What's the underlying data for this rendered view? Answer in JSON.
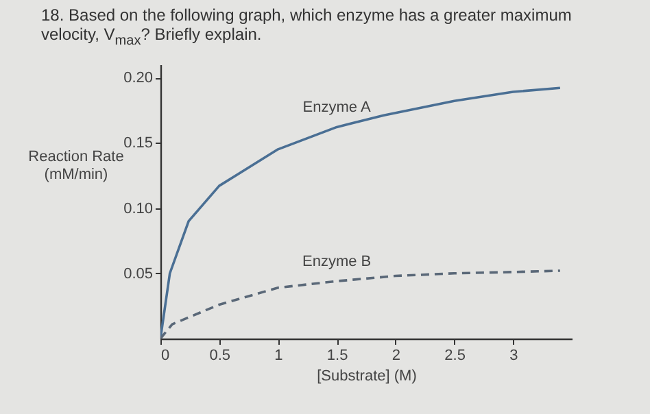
{
  "chart_data": {
    "type": "line",
    "title": "18. Based on the following graph, which enzyme has a greater maximum velocity, V$_{max}$? Briefly explain.",
    "xlabel": "[Substrate] (M)",
    "ylabel": "Reaction Rate (mM/min)",
    "series": [
      {
        "name": "Enzyme A",
        "color": "#4a6f94",
        "line_style": "solid",
        "x": [
          0,
          0.08,
          0.24,
          0.5,
          1,
          1.5,
          1.9,
          2.5,
          3,
          3.4
        ],
        "values": [
          0,
          0.05,
          0.09,
          0.117,
          0.145,
          0.162,
          0.171,
          0.182,
          0.189,
          0.192
        ]
      },
      {
        "name": "Enzyme B",
        "color": "#5a6878",
        "line_style": "dashed",
        "x": [
          0,
          0.1,
          0.5,
          1,
          1.5,
          2,
          2.5,
          3,
          3.4
        ],
        "values": [
          0,
          0.011,
          0.026,
          0.039,
          0.044,
          0.048,
          0.05,
          0.051,
          0.052
        ]
      }
    ],
    "xlim": [
      0,
      3.5
    ],
    "ylim": [
      0,
      0.21
    ],
    "xticks": [
      0,
      0.5,
      1,
      1.5,
      2,
      2.5,
      3
    ],
    "yticks": [
      0.05,
      {
        "value": 0.1,
        "label": "0.10"
      },
      0.15,
      {
        "value": 0.2,
        "label": "0.20"
      }
    ],
    "grid": false,
    "marker": "none"
  }
}
